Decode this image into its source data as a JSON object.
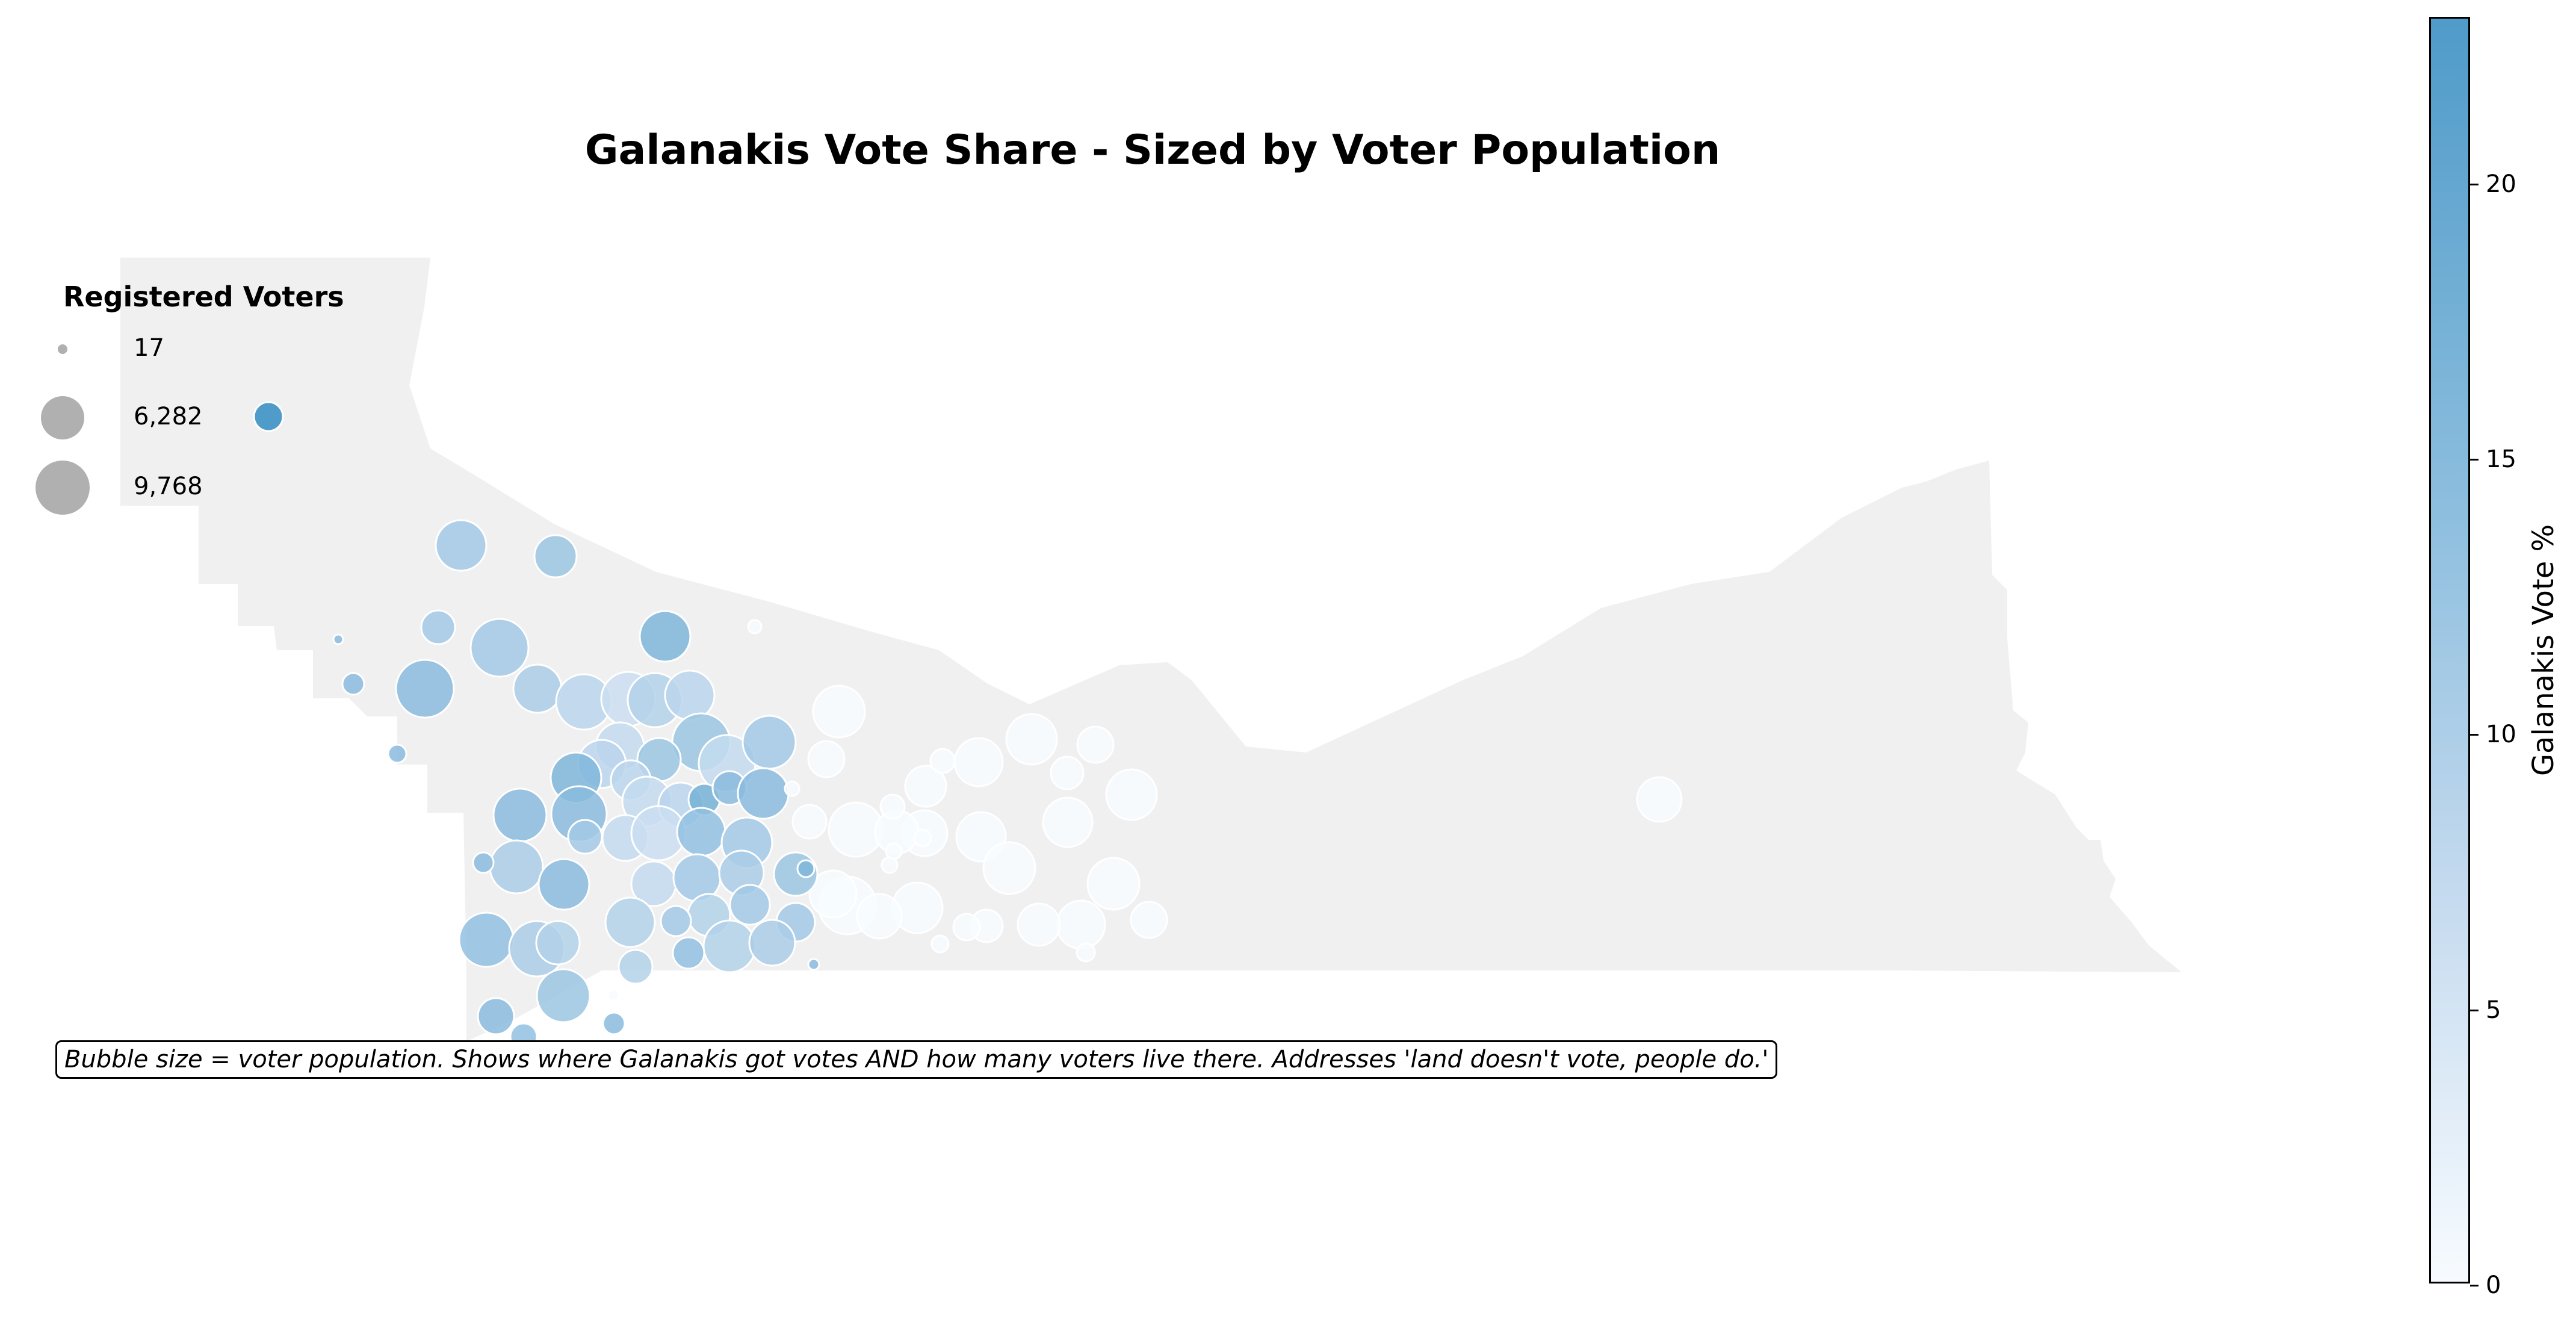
{
  "title": "Galanakis Vote Share - Sized by Voter Population",
  "legend": {
    "title": "Registered Voters",
    "items": [
      {
        "label": "17",
        "voters": 17
      },
      {
        "label": "6,282",
        "voters": 6282
      },
      {
        "label": "9,768",
        "voters": 9768
      }
    ]
  },
  "note": "Bubble size = voter population. Shows where Galanakis got votes AND how many voters live there. Addresses 'land doesn't vote, people do.'",
  "colorbar": {
    "label": "Galanakis Vote %",
    "min": 0,
    "max": 23,
    "ticks": [
      "0",
      "5",
      "10",
      "15",
      "20"
    ],
    "colors": [
      "#f7fbff",
      "#c6dbef",
      "#8fbfdf",
      "#4f9bc9"
    ]
  },
  "colors": {
    "region_fill": "#f0f0f0",
    "bubble_edge": "#ffffff",
    "legend_bubble": "#b0b0b0"
  }
}
